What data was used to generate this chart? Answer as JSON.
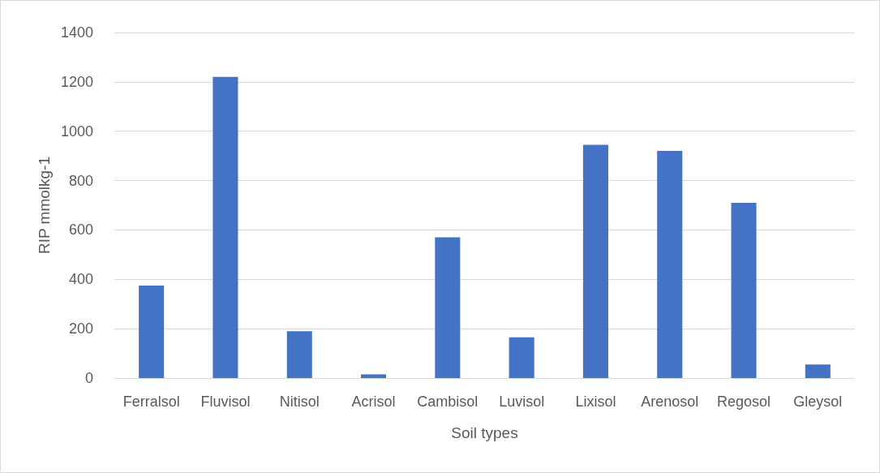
{
  "chart_data": {
    "type": "bar",
    "xlabel": "Soil types",
    "ylabel": "RIP mmolkg-1",
    "categories": [
      "Ferralsol",
      "Fluvisol",
      "Nitisol",
      "Acrisol",
      "Cambisol",
      "Luvisol",
      "Lixisol",
      "Arenosol",
      "Regosol",
      "Gleysol"
    ],
    "values": [
      375,
      1220,
      190,
      15,
      570,
      165,
      945,
      920,
      710,
      55
    ],
    "color": "#4472c4",
    "ylim": [
      0,
      1400
    ],
    "yticks": [
      0,
      200,
      400,
      600,
      800,
      1000,
      1200,
      1400
    ],
    "grid": "y"
  }
}
